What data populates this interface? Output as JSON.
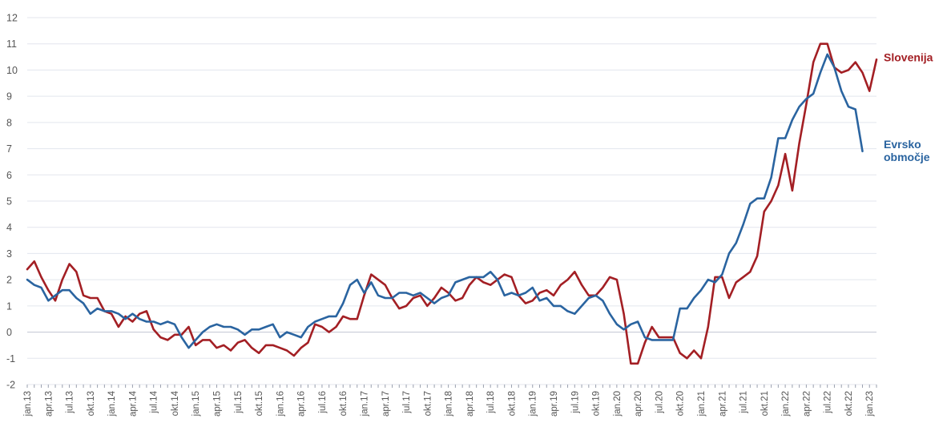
{
  "chart_data": {
    "type": "line",
    "title": "",
    "xlabel": "",
    "ylabel": "",
    "ylim": [
      -2,
      12
    ],
    "yticks": [
      -2,
      -1,
      0,
      1,
      2,
      3,
      4,
      5,
      6,
      7,
      8,
      9,
      10,
      11,
      12
    ],
    "grid": true,
    "legend": "right, end-of-line labels",
    "x_start": "jan.13",
    "x_tick_labels": [
      "jan.13",
      "apr.13",
      "jul.13",
      "okt.13",
      "jan.14",
      "apr.14",
      "jul.14",
      "okt.14",
      "jan.15",
      "apr.15",
      "jul.15",
      "okt.15",
      "jan.16",
      "apr.16",
      "jul.16",
      "okt.16",
      "jan.17",
      "apr.17",
      "jul.17",
      "okt.17",
      "jan.18",
      "apr.18",
      "jul.18",
      "okt.18",
      "jan.19",
      "apr.19",
      "jul.19",
      "okt.19",
      "jan.20",
      "apr.20",
      "jul.20",
      "okt.20",
      "jan.21",
      "apr.21",
      "jul.21",
      "okt.21",
      "jan.22",
      "apr.22",
      "jul.22",
      "okt.22",
      "jan.23"
    ],
    "series": [
      {
        "name": "Slovenija",
        "color": "#a31f24",
        "values": [
          2.4,
          2.7,
          2.1,
          1.6,
          1.2,
          2.0,
          2.6,
          2.3,
          1.4,
          1.3,
          1.3,
          0.8,
          0.7,
          0.2,
          0.6,
          0.4,
          0.7,
          0.8,
          0.1,
          -0.2,
          -0.3,
          -0.1,
          -0.1,
          0.2,
          -0.5,
          -0.3,
          -0.3,
          -0.6,
          -0.5,
          -0.7,
          -0.4,
          -0.3,
          -0.6,
          -0.8,
          -0.5,
          -0.5,
          -0.6,
          -0.7,
          -0.9,
          -0.6,
          -0.4,
          0.3,
          0.2,
          0.0,
          0.2,
          0.6,
          0.5,
          0.5,
          1.4,
          2.2,
          2.0,
          1.8,
          1.3,
          0.9,
          1.0,
          1.3,
          1.4,
          1.0,
          1.3,
          1.7,
          1.5,
          1.2,
          1.3,
          1.8,
          2.1,
          1.9,
          1.8,
          2.0,
          2.2,
          2.1,
          1.4,
          1.1,
          1.2,
          1.5,
          1.6,
          1.4,
          1.8,
          2.0,
          2.3,
          1.8,
          1.4,
          1.4,
          1.7,
          2.1,
          2.0,
          0.7,
          -1.2,
          -1.2,
          -0.4,
          0.2,
          -0.2,
          -0.2,
          -0.2,
          -0.8,
          -1.0,
          -0.7,
          -1.0,
          0.2,
          2.1,
          2.1,
          1.3,
          1.9,
          2.1,
          2.3,
          2.9,
          4.6,
          5.0,
          5.6,
          6.8,
          5.4,
          7.2,
          8.7,
          10.3,
          11.0,
          11.0,
          10.1,
          9.9,
          10.0,
          10.3,
          9.9,
          9.2,
          10.4
        ]
      },
      {
        "name": "Evrsko območje",
        "color": "#2a64a0",
        "values": [
          2.0,
          1.8,
          1.7,
          1.2,
          1.4,
          1.6,
          1.6,
          1.3,
          1.1,
          0.7,
          0.9,
          0.8,
          0.8,
          0.7,
          0.5,
          0.7,
          0.5,
          0.4,
          0.4,
          0.3,
          0.4,
          0.3,
          -0.2,
          -0.6,
          -0.3,
          0.0,
          0.2,
          0.3,
          0.2,
          0.2,
          0.1,
          -0.1,
          0.1,
          0.1,
          0.2,
          0.3,
          -0.2,
          0.0,
          -0.1,
          -0.2,
          0.2,
          0.4,
          0.5,
          0.6,
          0.6,
          1.1,
          1.8,
          2.0,
          1.5,
          1.9,
          1.4,
          1.3,
          1.3,
          1.5,
          1.5,
          1.4,
          1.5,
          1.3,
          1.1,
          1.3,
          1.4,
          1.9,
          2.0,
          2.1,
          2.1,
          2.1,
          2.3,
          2.0,
          1.4,
          1.5,
          1.4,
          1.5,
          1.7,
          1.2,
          1.3,
          1.0,
          1.0,
          0.8,
          0.7,
          1.0,
          1.3,
          1.4,
          1.2,
          0.7,
          0.3,
          0.1,
          0.3,
          0.4,
          -0.2,
          -0.3,
          -0.3,
          -0.3,
          -0.3,
          0.9,
          0.9,
          1.3,
          1.6,
          2.0,
          1.9,
          2.2,
          3.0,
          3.4,
          4.1,
          4.9,
          5.1,
          5.1,
          5.9,
          7.4,
          7.4,
          8.1,
          8.6,
          8.9,
          9.1,
          9.9,
          10.6,
          10.1,
          9.2,
          8.6,
          8.5,
          6.9
        ]
      }
    ]
  }
}
